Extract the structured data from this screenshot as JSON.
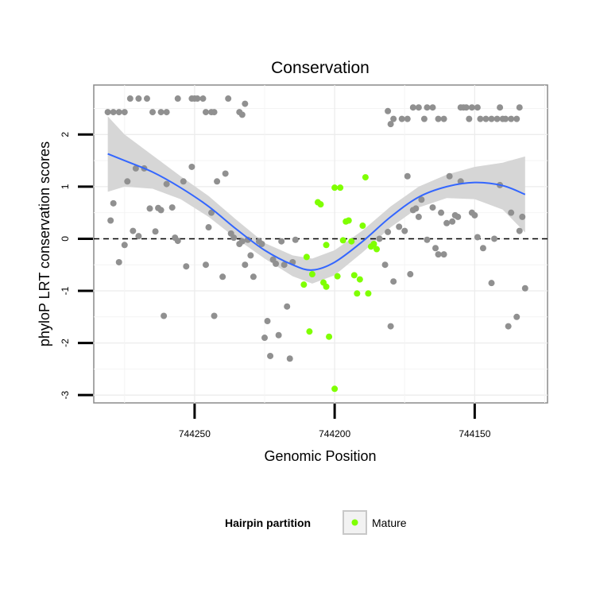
{
  "chart_data": {
    "type": "scatter",
    "title": "Conservation",
    "xlabel": "Genomic Position",
    "ylabel": "phyloP LRT conservation scores",
    "x_reversed": true,
    "xlim": [
      744286,
      744124
    ],
    "ylim": [
      -3.15,
      2.95
    ],
    "x_ticks": [
      744250,
      744200,
      744150
    ],
    "x_tick_labels": [
      "744250",
      "744200",
      "744150"
    ],
    "y_ticks": [
      -3,
      -2,
      -1,
      0,
      1,
      2
    ],
    "y_tick_labels": [
      "-3",
      "-2",
      "-1",
      "0",
      "1",
      "2"
    ],
    "grid": true,
    "reference_line": {
      "y": 0,
      "style": "dashed"
    },
    "legend": {
      "title": "Hairpin partition",
      "placement": "bottom",
      "entries": [
        {
          "label": "Mature",
          "color": "#7fff00"
        }
      ]
    },
    "colors": {
      "other": "#909090",
      "mature": "#7fff00",
      "smooth": "#3366ff",
      "band": "#d6d6d6"
    },
    "series": [
      {
        "name": "",
        "color": "#909090",
        "points": [
          [
            744281,
            2.43
          ],
          [
            744279,
            2.43
          ],
          [
            744277,
            2.43
          ],
          [
            744275,
            2.43
          ],
          [
            744273,
            2.69
          ],
          [
            744270,
            2.69
          ],
          [
            744267,
            2.69
          ],
          [
            744265,
            2.43
          ],
          [
            744262,
            2.43
          ],
          [
            744260,
            2.43
          ],
          [
            744256,
            2.69
          ],
          [
            744251,
            2.69
          ],
          [
            744250,
            2.69
          ],
          [
            744249,
            2.69
          ],
          [
            744247,
            2.69
          ],
          [
            744246,
            2.43
          ],
          [
            744244,
            2.43
          ],
          [
            744243,
            2.43
          ],
          [
            744238,
            2.69
          ],
          [
            744234,
            2.43
          ],
          [
            744233,
            2.38
          ],
          [
            744232,
            2.59
          ],
          [
            744280,
            0.35
          ],
          [
            744279,
            0.68
          ],
          [
            744277,
            -0.45
          ],
          [
            744275,
            -0.12
          ],
          [
            744274,
            1.1
          ],
          [
            744272,
            0.15
          ],
          [
            744271,
            1.35
          ],
          [
            744270,
            0.05
          ],
          [
            744268,
            1.35
          ],
          [
            744266,
            0.58
          ],
          [
            744264,
            0.14
          ],
          [
            744263,
            0.59
          ],
          [
            744262,
            0.55
          ],
          [
            744261,
            -1.48
          ],
          [
            744260,
            1.05
          ],
          [
            744258,
            0.6
          ],
          [
            744257,
            0.02
          ],
          [
            744256,
            -0.04
          ],
          [
            744254,
            1.1
          ],
          [
            744253,
            -0.53
          ],
          [
            744251,
            1.38
          ],
          [
            744246,
            -0.5
          ],
          [
            744245,
            0.22
          ],
          [
            744244,
            0.5
          ],
          [
            744243,
            -1.48
          ],
          [
            744242,
            1.1
          ],
          [
            744240,
            -0.73
          ],
          [
            744239,
            1.25
          ],
          [
            744237,
            0.1
          ],
          [
            744236,
            0.02
          ],
          [
            744234,
            -0.1
          ],
          [
            744233,
            -0.05
          ],
          [
            744232,
            -0.5
          ],
          [
            744231,
            -0.02
          ],
          [
            744230,
            -0.32
          ],
          [
            744229,
            -0.73
          ],
          [
            744227,
            -0.05
          ],
          [
            744226,
            -0.1
          ],
          [
            744225,
            -1.9
          ],
          [
            744224,
            -1.58
          ],
          [
            744223,
            -2.25
          ],
          [
            744222,
            -0.4
          ],
          [
            744221,
            -0.48
          ],
          [
            744220,
            -1.85
          ],
          [
            744219,
            -0.05
          ],
          [
            744218,
            -0.5
          ],
          [
            744217,
            -1.3
          ],
          [
            744216,
            -2.3
          ],
          [
            744215,
            -0.45
          ],
          [
            744214,
            -0.02
          ],
          [
            744184,
            0.0
          ],
          [
            744182,
            -0.5
          ],
          [
            744181,
            0.13
          ],
          [
            744180,
            -1.68
          ],
          [
            744179,
            -0.82
          ],
          [
            744177,
            0.23
          ],
          [
            744175,
            0.15
          ],
          [
            744174,
            1.2
          ],
          [
            744173,
            -0.68
          ],
          [
            744172,
            0.55
          ],
          [
            744171,
            0.58
          ],
          [
            744170,
            0.42
          ],
          [
            744169,
            0.75
          ],
          [
            744167,
            -0.02
          ],
          [
            744165,
            0.6
          ],
          [
            744164,
            -0.18
          ],
          [
            744163,
            -0.3
          ],
          [
            744162,
            0.5
          ],
          [
            744161,
            -0.3
          ],
          [
            744160,
            0.3
          ],
          [
            744159,
            1.2
          ],
          [
            744158,
            0.33
          ],
          [
            744157,
            0.45
          ],
          [
            744156,
            0.42
          ],
          [
            744155,
            1.1
          ],
          [
            744151,
            0.5
          ],
          [
            744150,
            0.45
          ],
          [
            744149,
            0.03
          ],
          [
            744147,
            -0.18
          ],
          [
            744144,
            -0.85
          ],
          [
            744143,
            0.0
          ],
          [
            744141,
            1.03
          ],
          [
            744138,
            -1.68
          ],
          [
            744137,
            0.5
          ],
          [
            744135,
            -1.5
          ],
          [
            744134,
            0.15
          ],
          [
            744133,
            0.42
          ],
          [
            744132,
            -0.95
          ],
          [
            744181,
            2.45
          ],
          [
            744180,
            2.2
          ],
          [
            744179,
            2.3
          ],
          [
            744176,
            2.3
          ],
          [
            744174,
            2.3
          ],
          [
            744172,
            2.52
          ],
          [
            744170,
            2.52
          ],
          [
            744168,
            2.3
          ],
          [
            744167,
            2.52
          ],
          [
            744165,
            2.52
          ],
          [
            744163,
            2.3
          ],
          [
            744161,
            2.3
          ],
          [
            744155,
            2.52
          ],
          [
            744154,
            2.52
          ],
          [
            744153,
            2.52
          ],
          [
            744152,
            2.3
          ],
          [
            744151,
            2.52
          ],
          [
            744149,
            2.52
          ],
          [
            744148,
            2.3
          ],
          [
            744146,
            2.3
          ],
          [
            744144,
            2.3
          ],
          [
            744142,
            2.3
          ],
          [
            744141,
            2.52
          ],
          [
            744140,
            2.3
          ],
          [
            744139,
            2.3
          ],
          [
            744137,
            2.3
          ],
          [
            744135,
            2.3
          ],
          [
            744134,
            2.52
          ]
        ]
      },
      {
        "name": "Mature",
        "color": "#7fff00",
        "points": [
          [
            744211,
            -0.88
          ],
          [
            744210,
            -0.35
          ],
          [
            744209,
            -1.78
          ],
          [
            744208,
            -0.68
          ],
          [
            744206,
            0.7
          ],
          [
            744205,
            0.66
          ],
          [
            744204,
            -0.84
          ],
          [
            744203,
            -0.12
          ],
          [
            744203,
            -0.92
          ],
          [
            744202,
            -1.88
          ],
          [
            744200,
            0.98
          ],
          [
            744200,
            -2.88
          ],
          [
            744199,
            -0.72
          ],
          [
            744198,
            0.98
          ],
          [
            744197,
            -0.03
          ],
          [
            744196,
            0.33
          ],
          [
            744195,
            0.35
          ],
          [
            744194,
            -0.05
          ],
          [
            744193,
            -0.7
          ],
          [
            744192,
            -1.05
          ],
          [
            744191,
            -0.78
          ],
          [
            744190,
            0.25
          ],
          [
            744189,
            1.18
          ],
          [
            744188,
            -1.05
          ],
          [
            744187,
            -0.15
          ],
          [
            744186,
            -0.1
          ],
          [
            744185,
            -0.2
          ]
        ]
      }
    ],
    "smooth": [
      [
        744281,
        1.63
      ],
      [
        744275,
        1.5
      ],
      [
        744265,
        1.28
      ],
      [
        744255,
        0.98
      ],
      [
        744245,
        0.62
      ],
      [
        744235,
        0.18
      ],
      [
        744225,
        -0.22
      ],
      [
        744215,
        -0.5
      ],
      [
        744208,
        -0.6
      ],
      [
        744200,
        -0.45
      ],
      [
        744190,
        -0.05
      ],
      [
        744180,
        0.42
      ],
      [
        744170,
        0.8
      ],
      [
        744160,
        1.0
      ],
      [
        744150,
        1.08
      ],
      [
        744140,
        1.02
      ],
      [
        744132,
        0.85
      ]
    ],
    "band_upper": [
      [
        744281,
        2.35
      ],
      [
        744275,
        2.0
      ],
      [
        744265,
        1.6
      ],
      [
        744255,
        1.2
      ],
      [
        744245,
        0.82
      ],
      [
        744235,
        0.36
      ],
      [
        744225,
        -0.08
      ],
      [
        744215,
        -0.32
      ],
      [
        744208,
        -0.38
      ],
      [
        744200,
        -0.22
      ],
      [
        744190,
        0.16
      ],
      [
        744180,
        0.62
      ],
      [
        744170,
        1.0
      ],
      [
        744160,
        1.23
      ],
      [
        744150,
        1.38
      ],
      [
        744140,
        1.46
      ],
      [
        744132,
        1.58
      ]
    ],
    "band_lower": [
      [
        744281,
        0.9
      ],
      [
        744275,
        1.0
      ],
      [
        744265,
        0.96
      ],
      [
        744255,
        0.76
      ],
      [
        744245,
        0.42
      ],
      [
        744235,
        0.0
      ],
      [
        744225,
        -0.38
      ],
      [
        744215,
        -0.72
      ],
      [
        744208,
        -0.86
      ],
      [
        744200,
        -0.7
      ],
      [
        744190,
        -0.26
      ],
      [
        744180,
        0.22
      ],
      [
        744170,
        0.6
      ],
      [
        744160,
        0.78
      ],
      [
        744150,
        0.76
      ],
      [
        744140,
        0.56
      ],
      [
        744132,
        0.12
      ]
    ]
  }
}
